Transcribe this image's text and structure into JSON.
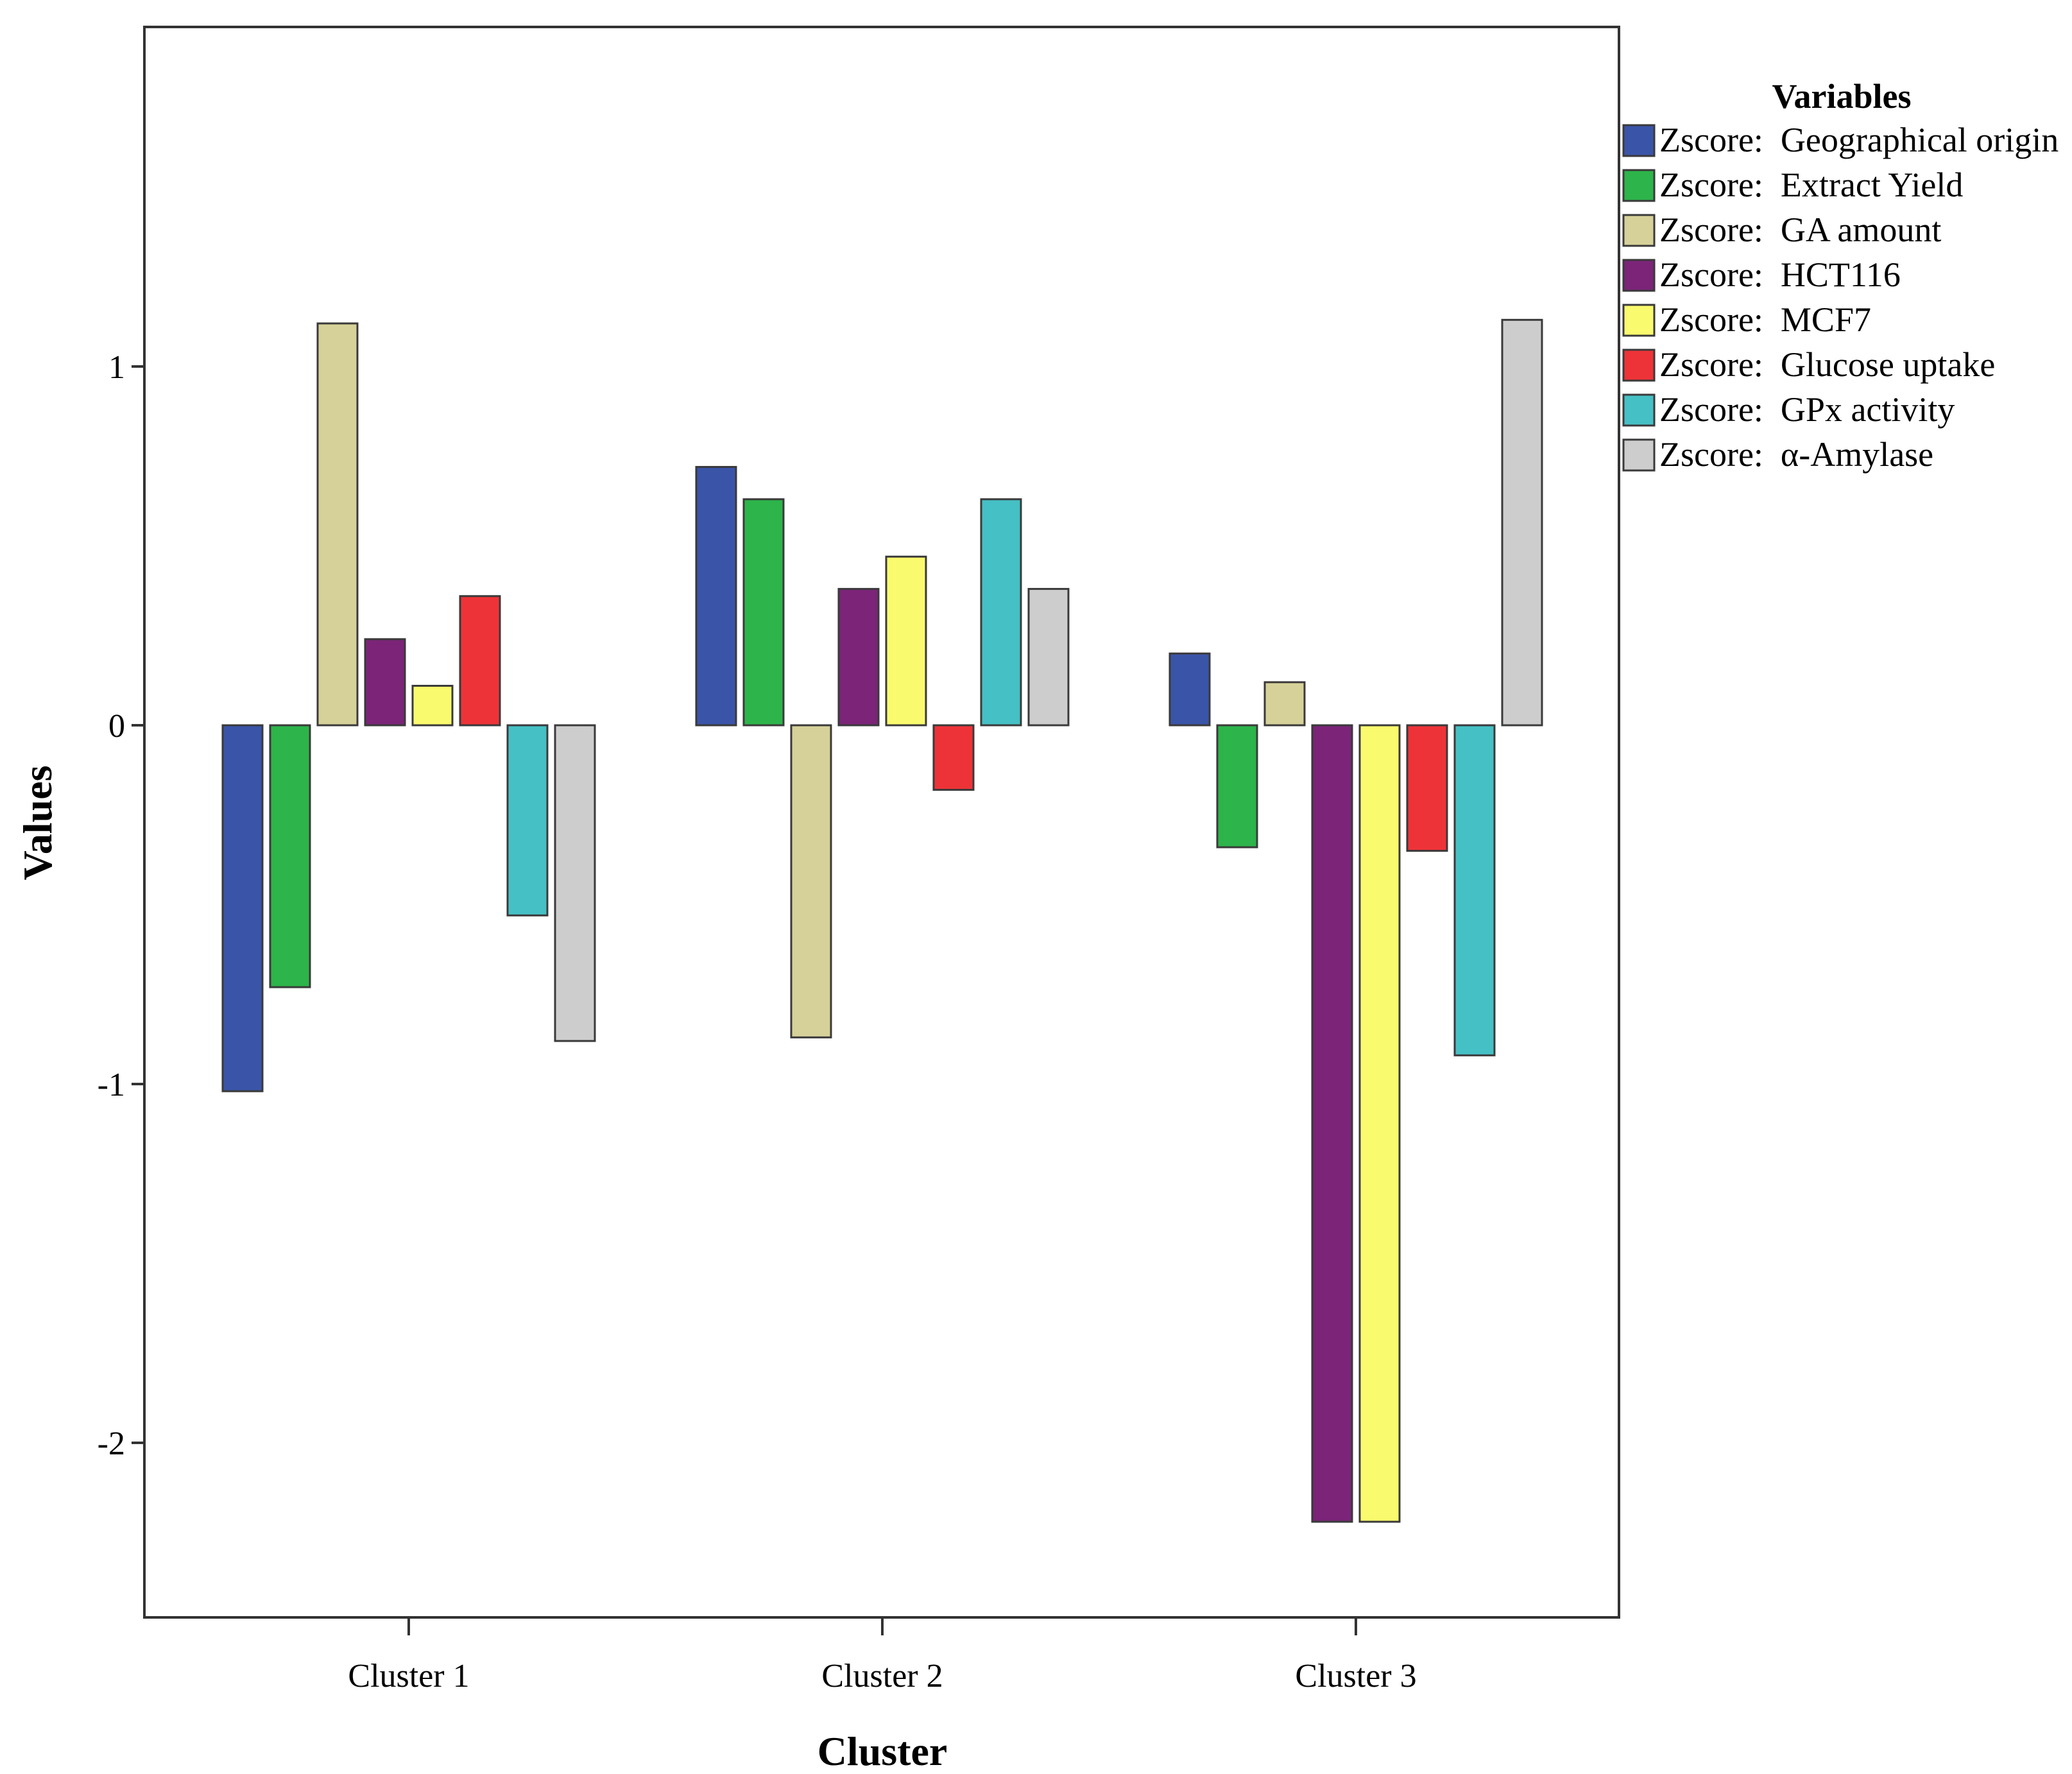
{
  "chart_data": {
    "type": "bar",
    "title": "",
    "xlabel": "Cluster",
    "ylabel": "Values",
    "ylim": [
      -2.5,
      1.95
    ],
    "yticks": [
      -2,
      -1,
      0,
      1
    ],
    "categories": [
      "Cluster 1",
      "Cluster 2",
      "Cluster 3"
    ],
    "legend_title": "Variables",
    "legend_position": "top-right (outside plot)",
    "series": [
      {
        "name": "Zscore:  Geographical origin",
        "color": "#3a54a8",
        "values": [
          -1.02,
          0.72,
          0.2
        ]
      },
      {
        "name": "Zscore:  Extract Yield",
        "color": "#2db44a",
        "values": [
          -0.73,
          0.63,
          -0.34
        ]
      },
      {
        "name": "Zscore:  GA amount",
        "color": "#d6d199",
        "values": [
          1.12,
          -0.87,
          0.12
        ]
      },
      {
        "name": "Zscore:  HCT116",
        "color": "#7b2478",
        "values": [
          0.24,
          0.38,
          -2.22
        ]
      },
      {
        "name": "Zscore:  MCF7",
        "color": "#fafa6e",
        "values": [
          0.11,
          0.47,
          -2.22
        ]
      },
      {
        "name": "Zscore:  Glucose uptake",
        "color": "#ed3338",
        "values": [
          0.36,
          -0.18,
          -0.35
        ]
      },
      {
        "name": "Zscore:  GPx activity",
        "color": "#45c0c4",
        "values": [
          -0.53,
          0.63,
          -0.92
        ]
      },
      {
        "name": "Zscore:  α-Amylase",
        "color": "#cdcdcd",
        "values": [
          -0.88,
          0.38,
          1.13
        ]
      }
    ]
  }
}
